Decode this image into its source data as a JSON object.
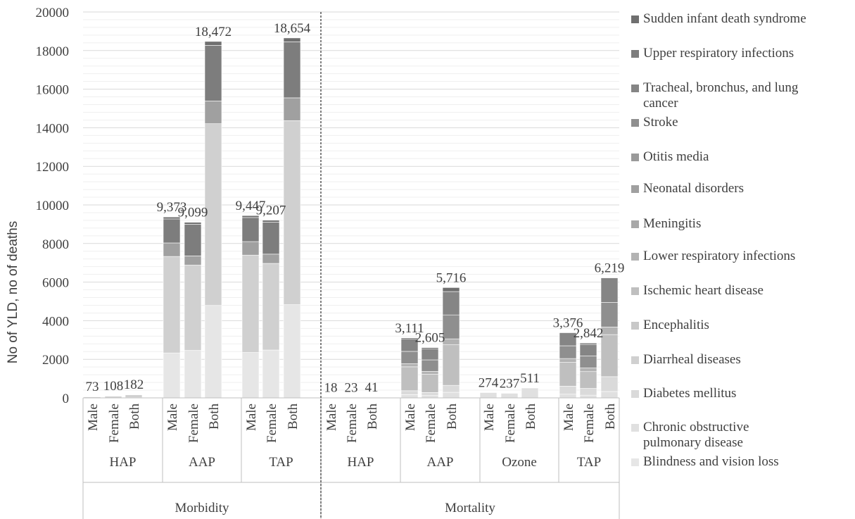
{
  "chart_data": {
    "type": "bar",
    "stacked": true,
    "ylabel": "No of YLD, no of deaths",
    "ylim": [
      0,
      20000
    ],
    "yticks": [
      0,
      2000,
      4000,
      6000,
      8000,
      10000,
      12000,
      14000,
      16000,
      18000,
      20000
    ],
    "grid": true,
    "legend_position": "right",
    "categories": [
      {
        "group": "Morbidity",
        "subgroup": "HAP",
        "sex": "Male",
        "total": 73,
        "total_label": "73"
      },
      {
        "group": "Morbidity",
        "subgroup": "HAP",
        "sex": "Female",
        "total": 108,
        "total_label": "108"
      },
      {
        "group": "Morbidity",
        "subgroup": "HAP",
        "sex": "Both",
        "total": 182,
        "total_label": "182"
      },
      {
        "group": "Morbidity",
        "subgroup": "AAP",
        "sex": "Male",
        "total": 9373,
        "total_label": "9,373"
      },
      {
        "group": "Morbidity",
        "subgroup": "AAP",
        "sex": "Female",
        "total": 9099,
        "total_label": "9,099"
      },
      {
        "group": "Morbidity",
        "subgroup": "AAP",
        "sex": "Both",
        "total": 18472,
        "total_label": "18,472"
      },
      {
        "group": "Morbidity",
        "subgroup": "TAP",
        "sex": "Male",
        "total": 9447,
        "total_label": "9,447"
      },
      {
        "group": "Morbidity",
        "subgroup": "TAP",
        "sex": "Female",
        "total": 9207,
        "total_label": "9,207"
      },
      {
        "group": "Morbidity",
        "subgroup": "TAP",
        "sex": "Both",
        "total": 18654,
        "total_label": "18,654"
      },
      {
        "group": "Mortality",
        "subgroup": "HAP",
        "sex": "Male",
        "total": 18,
        "total_label": "18"
      },
      {
        "group": "Mortality",
        "subgroup": "HAP",
        "sex": "Female",
        "total": 23,
        "total_label": "23"
      },
      {
        "group": "Mortality",
        "subgroup": "HAP",
        "sex": "Both",
        "total": 41,
        "total_label": "41"
      },
      {
        "group": "Mortality",
        "subgroup": "AAP",
        "sex": "Male",
        "total": 3111,
        "total_label": "3,111"
      },
      {
        "group": "Mortality",
        "subgroup": "AAP",
        "sex": "Female",
        "total": 2605,
        "total_label": "2,605"
      },
      {
        "group": "Mortality",
        "subgroup": "AAP",
        "sex": "Both",
        "total": 5716,
        "total_label": "5,716"
      },
      {
        "group": "Mortality",
        "subgroup": "Ozone",
        "sex": "Male",
        "total": 274,
        "total_label": "274"
      },
      {
        "group": "Mortality",
        "subgroup": "Ozone",
        "sex": "Female",
        "total": 237,
        "total_label": "237"
      },
      {
        "group": "Mortality",
        "subgroup": "Ozone",
        "sex": "Both",
        "total": 511,
        "total_label": "511"
      },
      {
        "group": "Mortality",
        "subgroup": "TAP",
        "sex": "Male",
        "total": 3376,
        "total_label": "3,376"
      },
      {
        "group": "Mortality",
        "subgroup": "TAP",
        "sex": "Female",
        "total": 2842,
        "total_label": "2,842"
      },
      {
        "group": "Mortality",
        "subgroup": "TAP",
        "sex": "Both",
        "total": 6219,
        "total_label": "6,219"
      }
    ],
    "series": [
      {
        "name": "Blindness and vision loss",
        "color": "#e6e6e6",
        "values": [
          5,
          10,
          15,
          2330,
          2460,
          4790,
          2350,
          2480,
          4830,
          0,
          0,
          0,
          0,
          0,
          0,
          0,
          0,
          0,
          0,
          0,
          0
        ]
      },
      {
        "name": "Chronic obstructive pulmonary disease",
        "color": "#e0e0e0",
        "values": [
          0,
          0,
          0,
          0,
          0,
          0,
          0,
          0,
          0,
          5,
          5,
          10,
          170,
          120,
          290,
          274,
          237,
          511,
          190,
          140,
          330
        ]
      },
      {
        "name": "Diabetes mellitus",
        "color": "#dadada",
        "values": [
          0,
          0,
          0,
          0,
          0,
          0,
          0,
          0,
          0,
          2,
          3,
          5,
          200,
          160,
          360,
          0,
          0,
          0,
          420,
          350,
          770
        ]
      },
      {
        "name": "Diarrheal diseases",
        "color": "#d0d0d0",
        "values": [
          60,
          85,
          145,
          5000,
          4420,
          9420,
          5050,
          4490,
          9540,
          0,
          0,
          0,
          0,
          0,
          0,
          0,
          0,
          0,
          0,
          0,
          0
        ]
      },
      {
        "name": "Encephalitis",
        "color": "#c8c8c8",
        "values": [
          0,
          0,
          0,
          0,
          0,
          0,
          0,
          0,
          0,
          0,
          0,
          0,
          0,
          0,
          0,
          0,
          0,
          0,
          0,
          0,
          0
        ]
      },
      {
        "name": "Ischemic heart disease",
        "color": "#bfbfbf",
        "values": [
          0,
          0,
          0,
          0,
          0,
          0,
          0,
          0,
          0,
          5,
          6,
          11,
          1240,
          940,
          2100,
          0,
          0,
          0,
          1230,
          870,
          2180
        ]
      },
      {
        "name": "Lower respiratory infections",
        "color": "#b3b3b3",
        "values": [
          0,
          0,
          0,
          0,
          0,
          0,
          0,
          0,
          0,
          1,
          1,
          2,
          160,
          150,
          310,
          0,
          0,
          0,
          200,
          190,
          390
        ]
      },
      {
        "name": "Meningitis",
        "color": "#a8a8a8",
        "values": [
          0,
          0,
          0,
          0,
          0,
          0,
          0,
          0,
          0,
          0,
          0,
          0,
          0,
          0,
          0,
          0,
          0,
          0,
          0,
          0,
          0
        ]
      },
      {
        "name": "Neonatal disorders",
        "color": "#a0a0a0",
        "values": [
          5,
          8,
          13,
          700,
          480,
          1180,
          700,
          480,
          1180,
          0,
          0,
          0,
          0,
          0,
          0,
          0,
          0,
          0,
          0,
          0,
          0
        ]
      },
      {
        "name": "Otitis media",
        "color": "#9a9a9a",
        "values": [
          0,
          0,
          0,
          0,
          0,
          0,
          0,
          0,
          0,
          0,
          0,
          0,
          0,
          0,
          0,
          0,
          0,
          0,
          0,
          0,
          0
        ]
      },
      {
        "name": "Stroke",
        "color": "#8f8f8f",
        "values": [
          0,
          0,
          0,
          0,
          0,
          0,
          0,
          0,
          0,
          2,
          3,
          5,
          640,
          600,
          1240,
          0,
          0,
          0,
          660,
          620,
          1280
        ]
      },
      {
        "name": "Tracheal, bronchus, and lung cancer",
        "color": "#858585",
        "values": [
          0,
          0,
          0,
          0,
          0,
          0,
          0,
          0,
          0,
          2,
          4,
          6,
          650,
          560,
          1210,
          0,
          0,
          0,
          676,
          602,
          1269
        ]
      },
      {
        "name": "Upper respiratory infections",
        "color": "#7d7d7d",
        "values": [
          3,
          5,
          9,
          1243,
          1639,
          2882,
          1247,
          1657,
          2904,
          0,
          0,
          0,
          0,
          0,
          0,
          0,
          0,
          0,
          0,
          0,
          0
        ]
      },
      {
        "name": "Sudden infant death syndrome",
        "color": "#6f6f6f",
        "values": [
          0,
          0,
          0,
          100,
          100,
          200,
          100,
          100,
          200,
          1,
          1,
          2,
          51,
          75,
          206,
          0,
          0,
          0,
          0,
          70,
          0
        ]
      }
    ]
  }
}
